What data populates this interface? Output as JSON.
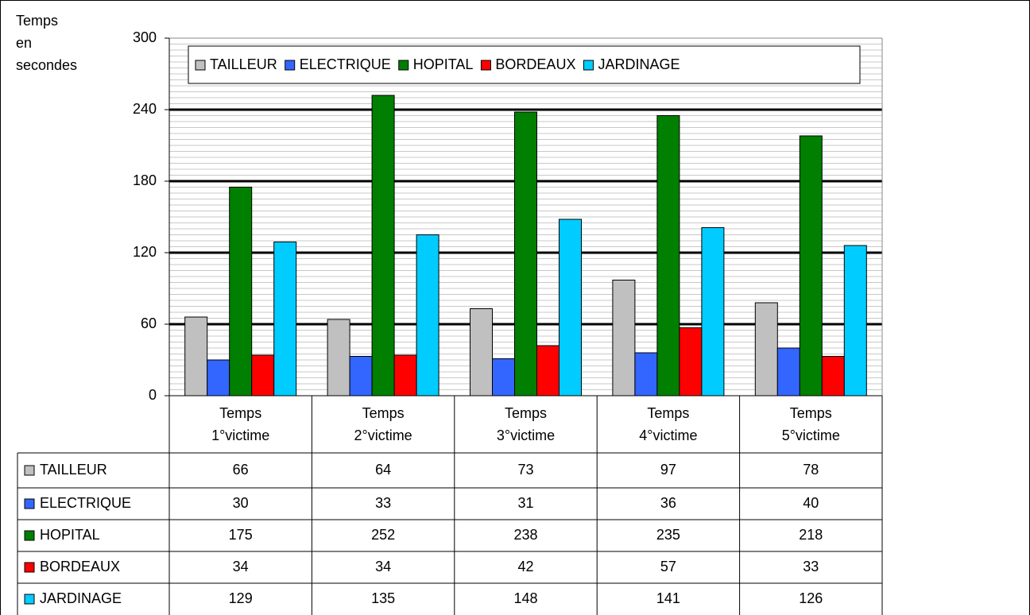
{
  "chart_data": {
    "type": "bar",
    "y_label": "Temps en secondes",
    "categories": [
      "Temps 1°victime",
      "Temps 2°victime",
      "Temps 3°victime",
      "Temps 4°victime",
      "Temps 5°victime"
    ],
    "series": [
      {
        "name": "TAILLEUR",
        "color": "#c0c0c0",
        "values": [
          66,
          64,
          73,
          97,
          78
        ]
      },
      {
        "name": "ELECTRIQUE",
        "color": "#3366ff",
        "values": [
          30,
          33,
          31,
          36,
          40
        ]
      },
      {
        "name": "HOPITAL",
        "color": "#007f00",
        "values": [
          175,
          252,
          238,
          235,
          218
        ]
      },
      {
        "name": "BORDEAUX",
        "color": "#ff0000",
        "values": [
          34,
          34,
          42,
          57,
          33
        ]
      },
      {
        "name": "JARDINAGE",
        "color": "#00ccff",
        "values": [
          129,
          135,
          148,
          141,
          126
        ]
      }
    ],
    "ylim": [
      0,
      300
    ],
    "yticks": [
      0,
      60,
      120,
      180,
      240,
      300
    ],
    "grid": true,
    "legend": "top"
  }
}
